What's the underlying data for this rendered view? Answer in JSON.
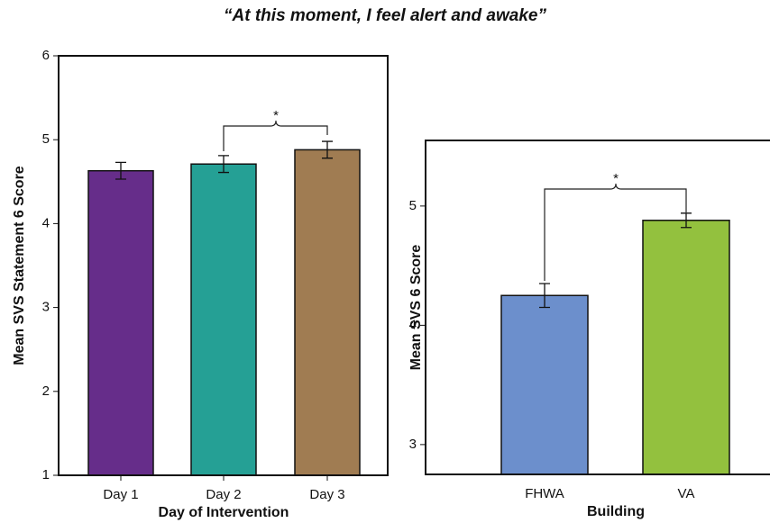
{
  "title": "“At this moment, I feel alert and awake”",
  "chart_data": [
    {
      "type": "bar",
      "xlabel": "Day of Intervention",
      "ylabel": "Mean SVS Statement 6 Score",
      "categories": [
        "Day 1",
        "Day 2",
        "Day 3"
      ],
      "values": [
        4.63,
        4.71,
        4.88
      ],
      "errors": [
        0.1,
        0.1,
        0.1
      ],
      "colors": [
        "#662d8a",
        "#25a095",
        "#a07c52"
      ],
      "ylim": [
        1,
        6
      ],
      "yticks": [
        1,
        2,
        3,
        4,
        5,
        6
      ],
      "annotation": "*"
    },
    {
      "type": "bar",
      "xlabel": "Building",
      "ylabel": "Mean SVS 6 Score",
      "categories": [
        "FHWA",
        "VA"
      ],
      "values": [
        4.25,
        4.88
      ],
      "errors": [
        0.1,
        0.06
      ],
      "colors": [
        "#6c8fcc",
        "#93c13e"
      ],
      "ylim": [
        2.75,
        5.55
      ],
      "yticks": [
        3,
        4,
        5
      ],
      "annotation": "*"
    }
  ]
}
